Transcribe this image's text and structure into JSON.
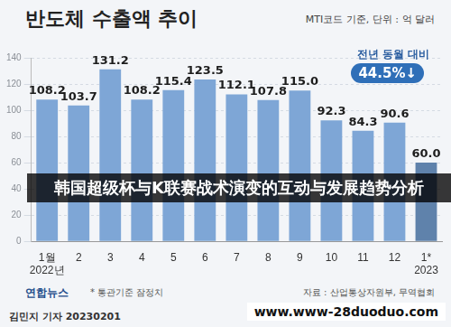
{
  "chart_data": {
    "type": "bar",
    "title": "반도체 수출액 추이",
    "subtitle": "MTI코드 기준, 단위 : 억 달러",
    "categories": [
      "1월",
      "2",
      "3",
      "4",
      "5",
      "6",
      "7",
      "8",
      "9",
      "10",
      "11",
      "12",
      "1*"
    ],
    "year_labels": [
      "2022년",
      null,
      null,
      null,
      null,
      null,
      null,
      null,
      null,
      null,
      null,
      null,
      "2023"
    ],
    "values": [
      108.2,
      103.7,
      131.2,
      108.2,
      115.4,
      123.5,
      112.1,
      107.8,
      115.0,
      92.3,
      84.3,
      90.6,
      60.0
    ],
    "value_labels": [
      "108.2",
      "103.7",
      "131.2",
      "108.2",
      "115.4",
      "123.5",
      "112.1",
      "107.8",
      "115.0",
      "92.3",
      "84.3",
      "90.6",
      "60.0"
    ],
    "colors": [
      "#7ea6d6",
      "#7ea6d6",
      "#7ea6d6",
      "#7ea6d6",
      "#7ea6d6",
      "#7ea6d6",
      "#7ea6d6",
      "#7ea6d6",
      "#7ea6d6",
      "#7ea6d6",
      "#7ea6d6",
      "#7ea6d6",
      "#5f82ab"
    ],
    "ylim": [
      0,
      140
    ],
    "yticks": [
      0,
      20,
      40,
      60,
      80,
      100,
      120,
      140
    ],
    "grid": true,
    "data_labels": true,
    "annotation": {
      "text": "전년 동월 대비",
      "label": "44.5%↓"
    },
    "banner": "韩国超级杯与K联赛战术演变的互动与发展趋势分析",
    "logo": "연합뉴스",
    "note": "* 통관기준 잠정치",
    "source": "자료 : 산업통상자원부, 무역협회",
    "byline": "김민지 기자 20230201",
    "url": "www.www-28duoduo.com"
  }
}
